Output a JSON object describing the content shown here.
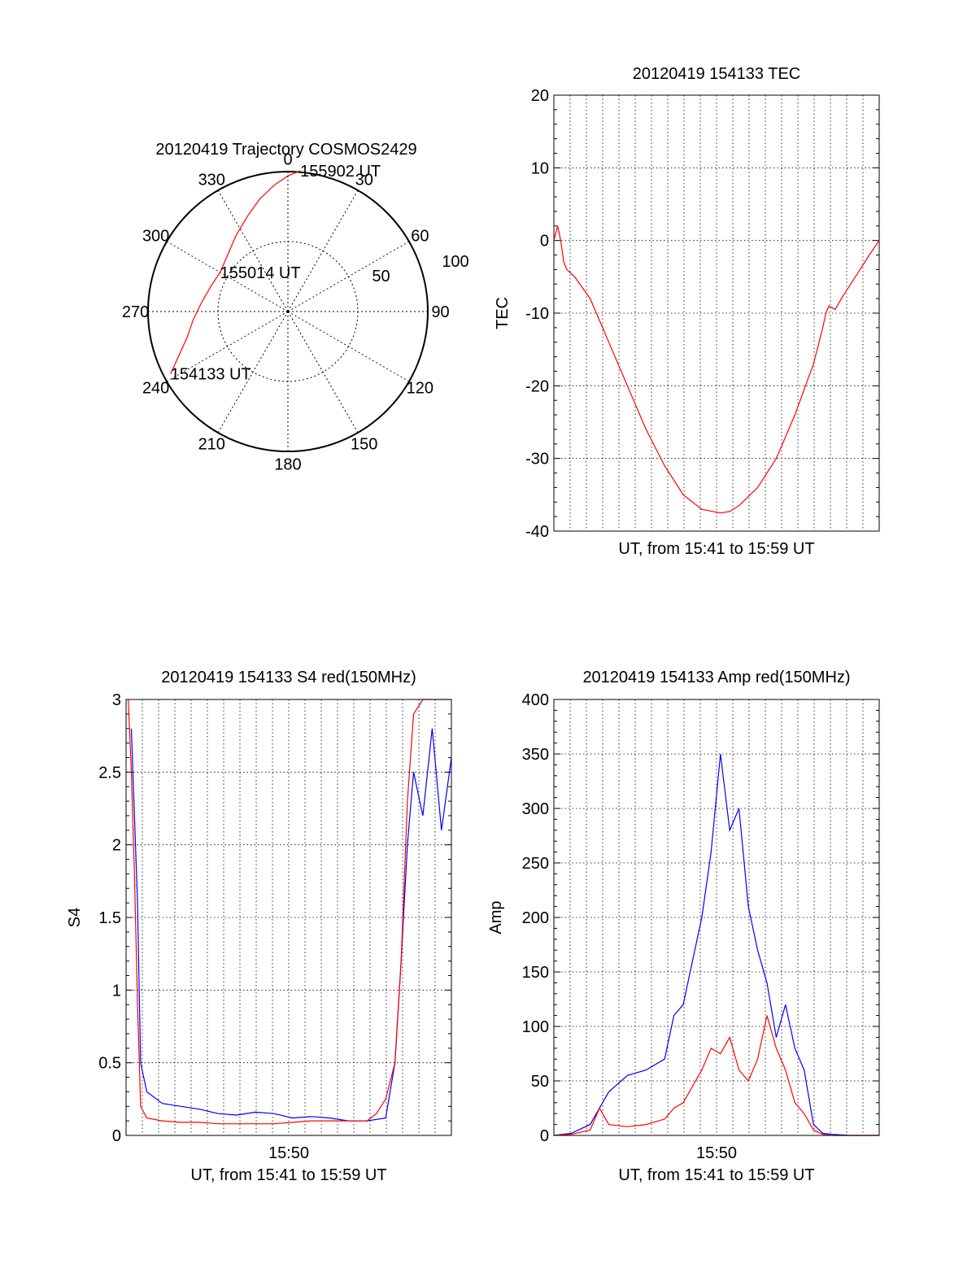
{
  "colors": {
    "red": "#ff0000",
    "blue": "#0000ff",
    "axis": "#000000",
    "grid": "#000000",
    "background": "#ffffff"
  },
  "chart_data": [
    {
      "id": "trajectory",
      "type": "polar",
      "title": "20120419 Trajectory COSMOS2429",
      "azimuth_labels": [
        "0",
        "30",
        "60",
        "90",
        "120",
        "150",
        "180",
        "210",
        "240",
        "270",
        "300",
        "330"
      ],
      "radial_labels": [
        "50",
        "100"
      ],
      "grid": true,
      "series": [
        {
          "color": "red",
          "points": [
            {
              "az": 242,
              "zen": 95
            },
            {
              "az": 248,
              "zen": 84
            },
            {
              "az": 256,
              "zen": 74
            },
            {
              "az": 265,
              "zen": 68
            },
            {
              "az": 276,
              "zen": 62
            },
            {
              "az": 288,
              "zen": 58
            },
            {
              "az": 300,
              "zen": 56
            },
            {
              "az": 313,
              "zen": 59
            },
            {
              "az": 326,
              "zen": 66
            },
            {
              "az": 337,
              "zen": 74
            },
            {
              "az": 346,
              "zen": 83
            },
            {
              "az": 354,
              "zen": 91
            },
            {
              "az": 0,
              "zen": 97
            },
            {
              "az": 5,
              "zen": 101
            }
          ]
        }
      ],
      "annotations": [
        {
          "text": "154133 UT",
          "az": 242,
          "zen": 95
        },
        {
          "text": "155014 UT",
          "az": 300,
          "zen": 56
        },
        {
          "text": "155902 UT",
          "az": 5,
          "zen": 101
        }
      ]
    },
    {
      "id": "tec",
      "type": "line",
      "title": "20120419 154133 TEC",
      "xlabel": "UT, from 15:41 to 15:59 UT",
      "ylabel": "TEC",
      "xlim": [
        "15:41:33",
        "15:59:02"
      ],
      "ylim": [
        -40,
        20
      ],
      "yticks": [
        "20",
        "10",
        "0",
        "-10",
        "-20",
        "-30",
        "-40"
      ],
      "grid": true,
      "series": [
        {
          "color": "red",
          "x": [
            "15:41:33",
            "15:41:45",
            "15:41:55",
            "15:42:05",
            "15:42:15",
            "15:42:40",
            "15:43:30",
            "15:44:30",
            "15:45:30",
            "15:46:30",
            "15:47:30",
            "15:48:30",
            "15:49:30",
            "15:50:30",
            "15:51:00",
            "15:51:30",
            "15:52:30",
            "15:53:30",
            "15:54:30",
            "15:55:30",
            "15:56:00",
            "15:56:10",
            "15:56:20",
            "15:56:40",
            "15:57:00",
            "15:57:30",
            "15:58:00",
            "15:58:30",
            "15:59:02"
          ],
          "values": [
            0,
            2,
            0,
            -3,
            -4,
            -5,
            -8,
            -14,
            -20,
            -26,
            -31,
            -35,
            -37,
            -37.5,
            -37.3,
            -36.5,
            -34,
            -30,
            -24,
            -17,
            -12,
            -10,
            -9,
            -9.5,
            -8,
            -6,
            -4,
            -2,
            0
          ]
        }
      ]
    },
    {
      "id": "s4",
      "type": "line",
      "title": "20120419 154133 S4 red(150MHz)",
      "xlabel": "UT, from 15:41 to 15:59 UT",
      "xtick": "15:50",
      "ylabel": "S4",
      "xlim": [
        "15:41:33",
        "15:59:02"
      ],
      "ylim": [
        0,
        3
      ],
      "yticks": [
        "3",
        "2.5",
        "2",
        "1.5",
        "1",
        "0.5",
        "0"
      ],
      "grid": true,
      "series": [
        {
          "color": "blue",
          "x": [
            "15:41:50",
            "15:42:00",
            "15:42:10",
            "15:42:20",
            "15:42:40",
            "15:43:30",
            "15:44:30",
            "15:45:30",
            "15:46:30",
            "15:47:30",
            "15:48:30",
            "15:49:30",
            "15:50:30",
            "15:51:30",
            "15:52:30",
            "15:53:30",
            "15:54:30",
            "15:55:30",
            "15:56:00",
            "15:56:20",
            "15:56:40",
            "15:57:00",
            "15:57:30",
            "15:58:00",
            "15:58:30",
            "15:59:02"
          ],
          "values": [
            2.8,
            2.2,
            1.6,
            0.5,
            0.3,
            0.22,
            0.2,
            0.18,
            0.15,
            0.14,
            0.16,
            0.15,
            0.12,
            0.13,
            0.12,
            0.1,
            0.1,
            0.12,
            0.5,
            1.2,
            2.0,
            2.5,
            2.2,
            2.8,
            2.1,
            2.6
          ]
        },
        {
          "color": "red",
          "x": [
            "15:41:40",
            "15:41:50",
            "15:42:00",
            "15:42:10",
            "15:42:20",
            "15:42:40",
            "15:43:30",
            "15:44:30",
            "15:45:30",
            "15:46:30",
            "15:47:30",
            "15:48:30",
            "15:49:30",
            "15:50:30",
            "15:51:30",
            "15:52:30",
            "15:53:30",
            "15:54:30",
            "15:55:00",
            "15:55:30",
            "15:56:00",
            "15:56:20",
            "15:56:40",
            "15:57:00",
            "15:57:30",
            "15:58:00",
            "15:58:30",
            "15:59:02"
          ],
          "values": [
            3.0,
            2.5,
            1.8,
            0.9,
            0.2,
            0.12,
            0.1,
            0.09,
            0.09,
            0.08,
            0.08,
            0.08,
            0.08,
            0.09,
            0.1,
            0.1,
            0.1,
            0.1,
            0.15,
            0.25,
            0.5,
            1.2,
            2.3,
            2.9,
            3.0,
            3.0,
            3.0,
            3.0
          ]
        }
      ]
    },
    {
      "id": "amp",
      "type": "line",
      "title": "20120419 154133 Amp red(150MHz)",
      "xlabel": "UT, from 15:41 to 15:59 UT",
      "xtick": "15:50",
      "ylabel": "Amp",
      "xlim": [
        "15:41:33",
        "15:59:02"
      ],
      "ylim": [
        0,
        400
      ],
      "yticks": [
        "400",
        "350",
        "300",
        "250",
        "200",
        "150",
        "100",
        "50",
        "0"
      ],
      "grid": true,
      "series": [
        {
          "color": "blue",
          "x": [
            "15:41:33",
            "15:42:30",
            "15:43:30",
            "15:44:30",
            "15:45:30",
            "15:46:30",
            "15:47:30",
            "15:48:00",
            "15:48:30",
            "15:49:00",
            "15:49:30",
            "15:50:00",
            "15:50:30",
            "15:51:00",
            "15:51:30",
            "15:52:00",
            "15:52:30",
            "15:53:00",
            "15:53:30",
            "15:54:00",
            "15:54:30",
            "15:55:00",
            "15:55:30",
            "15:56:00",
            "15:56:30",
            "15:57:30",
            "15:59:02"
          ],
          "values": [
            0,
            2,
            10,
            40,
            55,
            60,
            70,
            110,
            120,
            160,
            200,
            260,
            350,
            280,
            300,
            210,
            170,
            140,
            90,
            120,
            80,
            60,
            10,
            2,
            1,
            0,
            0
          ]
        },
        {
          "color": "red",
          "x": [
            "15:41:33",
            "15:42:30",
            "15:43:30",
            "15:44:00",
            "15:44:30",
            "15:45:30",
            "15:46:30",
            "15:47:30",
            "15:48:00",
            "15:48:30",
            "15:49:00",
            "15:49:30",
            "15:50:00",
            "15:50:30",
            "15:51:00",
            "15:51:30",
            "15:52:00",
            "15:52:30",
            "15:53:00",
            "15:53:30",
            "15:54:00",
            "15:54:30",
            "15:55:00",
            "15:55:30",
            "15:56:00",
            "15:56:30",
            "15:57:30",
            "15:59:02"
          ],
          "values": [
            0,
            1,
            5,
            25,
            10,
            8,
            10,
            15,
            25,
            30,
            45,
            60,
            80,
            75,
            90,
            60,
            50,
            70,
            110,
            80,
            60,
            30,
            20,
            5,
            1,
            0,
            0,
            0
          ]
        }
      ]
    }
  ]
}
